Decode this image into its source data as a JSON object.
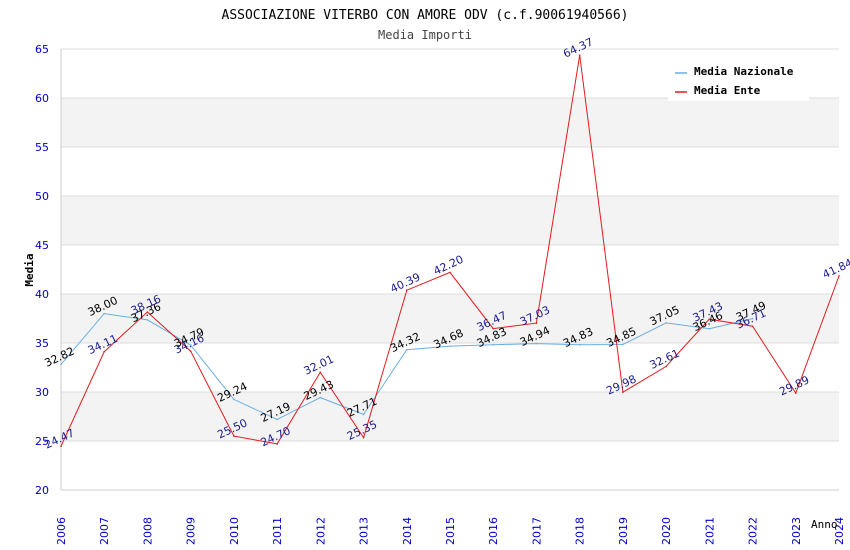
{
  "chart_data": {
    "type": "line",
    "title": "ASSOCIAZIONE VITERBO CON AMORE ODV (c.f.90061940566)",
    "subtitle": "Media Importi",
    "xlabel": "Anno",
    "ylabel": "Media",
    "ylim": [
      20,
      65
    ],
    "y_ticks": [
      "20",
      "25",
      "30",
      "35",
      "40",
      "45",
      "50",
      "55",
      "60",
      "65"
    ],
    "categories": [
      "2006",
      "2007",
      "2008",
      "2009",
      "2010",
      "2011",
      "2012",
      "2013",
      "2014",
      "2015",
      "2016",
      "2017",
      "2018",
      "2019",
      "2020",
      "2021",
      "2022",
      "2023",
      "2024"
    ],
    "series": [
      {
        "name": "Media Nazionale",
        "color": "#6aaee6",
        "label_color": "#000000",
        "values": [
          32.82,
          38.0,
          37.36,
          34.79,
          29.24,
          27.19,
          29.43,
          27.71,
          34.32,
          34.68,
          34.83,
          34.94,
          34.83,
          34.85,
          37.05,
          36.46,
          37.49,
          null,
          null
        ],
        "labels": [
          "32.82",
          "38.00",
          "37.36",
          "34.79",
          "29.24",
          "27.19",
          "29.43",
          "27.71",
          "34.32",
          "34.68",
          "34.83",
          "34.94",
          "34.83",
          "34.85",
          "37.05",
          "36.46",
          "37.49",
          null,
          null
        ]
      },
      {
        "name": "Media Ente",
        "color": "#e31a1c",
        "label_color": "#1a1a8c",
        "values": [
          24.47,
          34.11,
          38.16,
          34.16,
          25.5,
          24.7,
          32.01,
          25.35,
          40.39,
          42.2,
          36.47,
          37.03,
          64.37,
          29.98,
          32.61,
          37.43,
          36.71,
          29.89,
          41.84
        ],
        "labels": [
          "24.47",
          "34.11",
          "38.16",
          "34.16",
          "25.50",
          "24.70",
          "32.01",
          "25.35",
          "40.39",
          "42.20",
          "36.47",
          "37.03",
          "64.37",
          "29.98",
          "32.61",
          "37.43",
          "36.71",
          "29.89",
          "41.84"
        ]
      }
    ],
    "grid": true,
    "legend_position": "top-right"
  }
}
